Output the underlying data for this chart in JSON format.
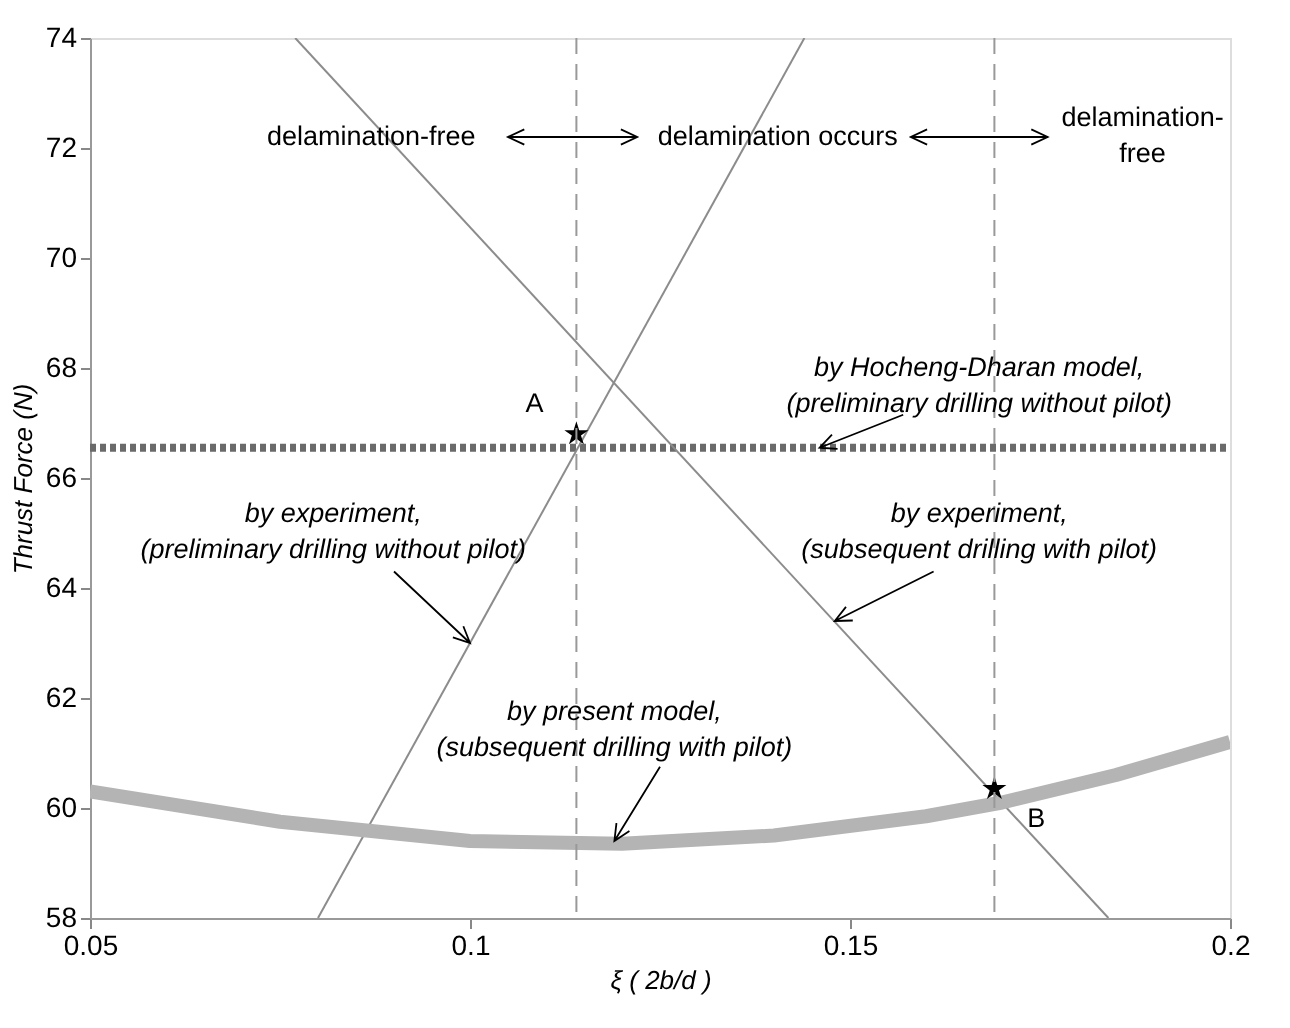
{
  "chart_data": {
    "type": "line",
    "xlabel": "ξ ( 2b/d )",
    "ylabel": "Thrust Force (N)",
    "xlim": [
      0.05,
      0.2
    ],
    "xticks": [
      0.05,
      0.1,
      0.15,
      0.2
    ],
    "ylim": [
      58,
      74
    ],
    "yticks": [
      58,
      60,
      62,
      64,
      66,
      68,
      70,
      72,
      74
    ],
    "grid": false,
    "series": [
      {
        "type": "line",
        "line_style": "dotted",
        "color": "#6a6a6a",
        "x": [
          0.05,
          0.2
        ],
        "values": [
          66.55,
          66.55
        ]
      },
      {
        "type": "line",
        "color": "#8c8c8c",
        "x": [
          0.08,
          0.144
        ],
        "values": [
          58,
          74
        ]
      },
      {
        "type": "line",
        "color": "#8c8c8c",
        "x": [
          0.077,
          0.184
        ],
        "values": [
          74,
          58
        ]
      },
      {
        "type": "line",
        "color": "#b4b4b4",
        "x": [
          0.05,
          0.075,
          0.1,
          0.12,
          0.14,
          0.16,
          0.17,
          0.185,
          0.2
        ],
        "values": [
          60.3,
          59.75,
          59.4,
          59.35,
          59.5,
          59.85,
          60.1,
          60.6,
          61.2
        ]
      },
      {
        "type": "scatter",
        "marker": "star",
        "color": "#000000",
        "x": [
          0.114,
          0.169
        ],
        "values": [
          66.8,
          60.35
        ]
      }
    ],
    "ref_lines": [
      {
        "axis": "x",
        "value": 0.114,
        "color": "#999999",
        "line_style": "dashed"
      },
      {
        "axis": "x",
        "value": 0.169,
        "color": "#999999",
        "line_style": "dashed"
      }
    ],
    "annotations": [
      "delamination-free",
      "delamination occurs",
      "delamination-\nfree",
      {
        "text": "by Hocheng-Dharan model,\n(preliminary drilling without pilot)",
        "x": 0.146,
        "y": 66.55
      },
      {
        "text": "by experiment,\n(preliminary drilling without pilot)",
        "x": 0.1,
        "y": 63.0
      },
      {
        "text": "by experiment,\n(subsequent drilling with pilot)",
        "x": 0.148,
        "y": 63.4
      },
      {
        "text": "by present model,\n(subsequent drilling with pilot)",
        "x": 0.119,
        "y": 59.4
      },
      {
        "text": "A",
        "x": 0.114,
        "y": 66.8
      },
      {
        "text": "B",
        "x": 0.169,
        "y": 60.35
      }
    ]
  }
}
